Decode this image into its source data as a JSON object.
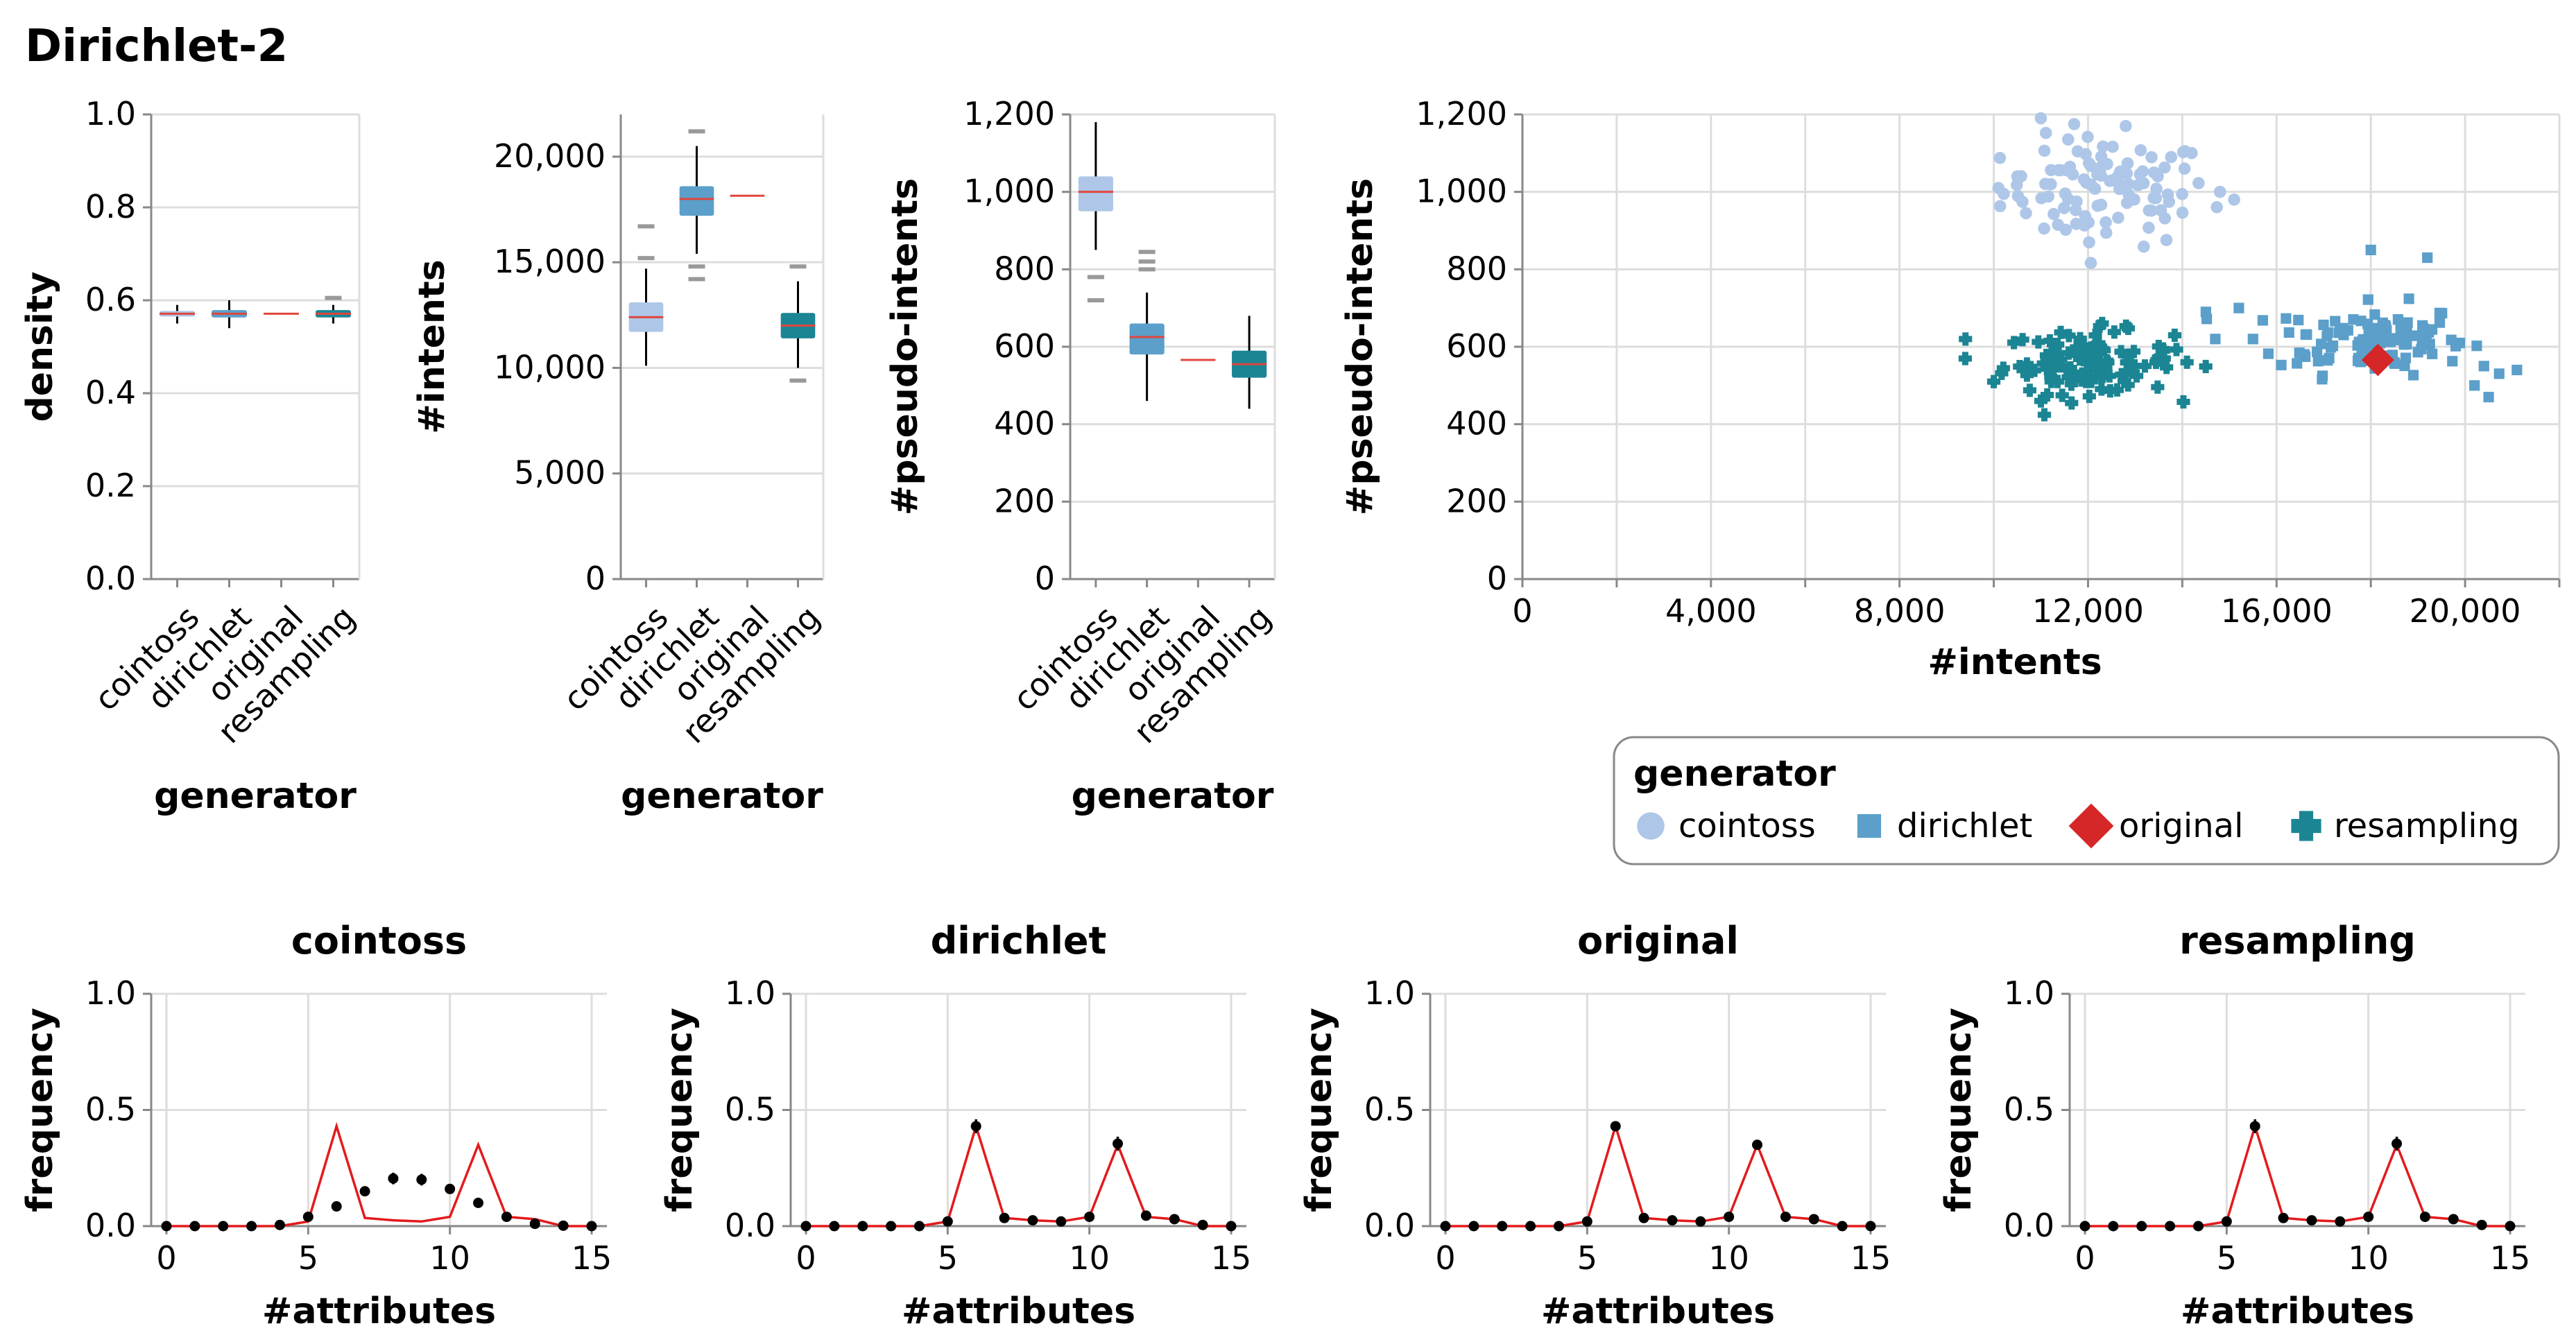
{
  "title": "Dirichlet-2",
  "colors": {
    "cointoss": "#aec7e8",
    "dirichlet": "#5b9fca",
    "original": "#d62728",
    "resampling": "#1b8594",
    "median": "#e0463c",
    "grid": "#dddddd",
    "axis": "#888888",
    "outlier": "#999999",
    "obs": "#000000",
    "orig_line": "#e31a1c"
  },
  "chart_data": [
    {
      "id": "density_box",
      "type": "boxplot",
      "xlabel": "generator",
      "ylabel": "density",
      "categories": [
        "cointoss",
        "dirichlet",
        "original",
        "resampling"
      ],
      "ylim": [
        0,
        1
      ],
      "yticks": [
        0,
        0.2,
        0.4,
        0.6,
        0.8,
        1
      ],
      "ytick_labels": [
        "0.0",
        "0.2",
        "0.4",
        "0.6",
        "0.8",
        "1.0"
      ],
      "boxes": [
        {
          "q1": 0.565,
          "median": 0.571,
          "q3": 0.577,
          "whisker_low": 0.55,
          "whisker_high": 0.59,
          "outliers": []
        },
        {
          "q1": 0.563,
          "median": 0.571,
          "q3": 0.579,
          "whisker_low": 0.54,
          "whisker_high": 0.6,
          "outliers": []
        },
        {
          "q1": 0.571,
          "median": 0.571,
          "q3": 0.571,
          "whisker_low": 0.571,
          "whisker_high": 0.571,
          "outliers": []
        },
        {
          "q1": 0.563,
          "median": 0.571,
          "q3": 0.579,
          "whisker_low": 0.55,
          "whisker_high": 0.59,
          "outliers": [
            0.605
          ]
        }
      ]
    },
    {
      "id": "intents_box",
      "type": "boxplot",
      "xlabel": "generator",
      "ylabel": "#intents",
      "categories": [
        "cointoss",
        "dirichlet",
        "original",
        "resampling"
      ],
      "ylim": [
        0,
        22000
      ],
      "yticks": [
        0,
        5000,
        10000,
        15000,
        20000
      ],
      "ytick_labels": [
        "0",
        "5,000",
        "10,000",
        "15,000",
        "20,000"
      ],
      "boxes": [
        {
          "q1": 11700,
          "median": 12400,
          "q3": 13100,
          "whisker_low": 10100,
          "whisker_high": 14700,
          "outliers": [
            15200,
            16700
          ]
        },
        {
          "q1": 17200,
          "median": 18000,
          "q3": 18600,
          "whisker_low": 15400,
          "whisker_high": 20500,
          "outliers": [
            14200,
            14800,
            21200
          ]
        },
        {
          "q1": 18150,
          "median": 18150,
          "q3": 18150,
          "whisker_low": 18150,
          "whisker_high": 18150,
          "outliers": []
        },
        {
          "q1": 11400,
          "median": 12000,
          "q3": 12600,
          "whisker_low": 10000,
          "whisker_high": 14100,
          "outliers": [
            9400,
            14800
          ]
        }
      ]
    },
    {
      "id": "pseudo_box",
      "type": "boxplot",
      "xlabel": "generator",
      "ylabel": "#pseudo-intents",
      "categories": [
        "cointoss",
        "dirichlet",
        "original",
        "resampling"
      ],
      "ylim": [
        0,
        1200
      ],
      "yticks": [
        0,
        200,
        400,
        600,
        800,
        1000,
        1200
      ],
      "ytick_labels": [
        "0",
        "200",
        "400",
        "600",
        "800",
        "1,000",
        "1,200"
      ],
      "boxes": [
        {
          "q1": 950,
          "median": 1000,
          "q3": 1040,
          "whisker_low": 850,
          "whisker_high": 1180,
          "outliers": [
            780,
            720
          ]
        },
        {
          "q1": 580,
          "median": 625,
          "q3": 660,
          "whisker_low": 460,
          "whisker_high": 740,
          "outliers": [
            800,
            820,
            845
          ]
        },
        {
          "q1": 566,
          "median": 566,
          "q3": 566,
          "whisker_low": 566,
          "whisker_high": 566,
          "outliers": []
        },
        {
          "q1": 520,
          "median": 555,
          "q3": 590,
          "whisker_low": 440,
          "whisker_high": 680,
          "outliers": []
        }
      ]
    },
    {
      "id": "scatter",
      "type": "scatter",
      "xlabel": "#intents",
      "ylabel": "#pseudo-intents",
      "xlim": [
        0,
        22000
      ],
      "ylim": [
        0,
        1200
      ],
      "xticks": [
        0,
        4000,
        8000,
        12000,
        16000,
        20000
      ],
      "xtick_labels": [
        "0",
        "4,000",
        "8,000",
        "12,000",
        "16,000",
        "20,000"
      ],
      "yticks": [
        0,
        200,
        400,
        600,
        800,
        1000,
        1200
      ],
      "ytick_labels": [
        "0",
        "200",
        "400",
        "600",
        "800",
        "1,000",
        "1,200"
      ],
      "series": [
        {
          "name": "cointoss",
          "marker": "circle",
          "center": [
            12400,
            1000
          ],
          "spread": [
            1100,
            70
          ],
          "count": 100,
          "extras": [
            [
              10100,
              1010
            ],
            [
              10500,
              1040
            ],
            [
              11000,
              1190
            ],
            [
              14800,
              1000
            ],
            [
              15100,
              980
            ],
            [
              13400,
              1050
            ],
            [
              12800,
              1170
            ]
          ]
        },
        {
          "name": "dirichlet",
          "marker": "square",
          "center": [
            18000,
            620
          ],
          "spread": [
            1000,
            45
          ],
          "count": 110,
          "extras": [
            [
              14700,
              620
            ],
            [
              15200,
              700
            ],
            [
              20400,
              550
            ],
            [
              21100,
              540
            ],
            [
              20200,
              500
            ],
            [
              20500,
              470
            ],
            [
              19200,
              830
            ],
            [
              18000,
              850
            ],
            [
              14500,
              690
            ],
            [
              15500,
              620
            ]
          ]
        },
        {
          "name": "original",
          "marker": "diamond",
          "points": [
            [
              18150,
              566
            ]
          ]
        },
        {
          "name": "resampling",
          "marker": "cross",
          "center": [
            12000,
            560
          ],
          "spread": [
            900,
            40
          ],
          "count": 110,
          "extras": [
            [
              9400,
              620
            ],
            [
              10000,
              510
            ],
            [
              14100,
              560
            ],
            [
              13600,
              590
            ],
            [
              12300,
              660
            ],
            [
              11000,
              460
            ]
          ]
        }
      ]
    },
    {
      "id": "freq_cointoss",
      "type": "line",
      "title": "cointoss",
      "xlabel": "#attributes",
      "ylabel": "frequency",
      "xlim": [
        0,
        15
      ],
      "ylim": [
        0,
        1
      ],
      "xticks": [
        0,
        5,
        10,
        15
      ],
      "xtick_labels": [
        "0",
        "5",
        "10",
        "15"
      ],
      "yticks": [
        0,
        0.5,
        1
      ],
      "ytick_labels": [
        "0.0",
        "0.5",
        "1.0"
      ],
      "x": [
        0,
        1,
        2,
        3,
        4,
        5,
        6,
        7,
        8,
        9,
        10,
        11,
        12,
        13,
        14,
        15
      ],
      "original": [
        0,
        0,
        0,
        0,
        0,
        0.02,
        0.43,
        0.035,
        0.025,
        0.02,
        0.04,
        0.35,
        0.04,
        0.03,
        0,
        0
      ],
      "observed": [
        0,
        0,
        0,
        0,
        0.005,
        0.04,
        0.085,
        0.15,
        0.205,
        0.2,
        0.16,
        0.1,
        0.04,
        0.01,
        0.002,
        0
      ],
      "errors": [
        0,
        0,
        0,
        0,
        0,
        0.01,
        0.02,
        0.02,
        0.025,
        0.025,
        0.02,
        0.02,
        0.01,
        0,
        0,
        0
      ]
    },
    {
      "id": "freq_dirichlet",
      "type": "line",
      "title": "dirichlet",
      "xlabel": "#attributes",
      "ylabel": "frequency",
      "xlim": [
        0,
        15
      ],
      "ylim": [
        0,
        1
      ],
      "xticks": [
        0,
        5,
        10,
        15
      ],
      "xtick_labels": [
        "0",
        "5",
        "10",
        "15"
      ],
      "yticks": [
        0,
        0.5,
        1
      ],
      "ytick_labels": [
        "0.0",
        "0.5",
        "1.0"
      ],
      "x": [
        0,
        1,
        2,
        3,
        4,
        5,
        6,
        7,
        8,
        9,
        10,
        11,
        12,
        13,
        14,
        15
      ],
      "original": [
        0,
        0,
        0,
        0,
        0,
        0.02,
        0.43,
        0.035,
        0.025,
        0.02,
        0.04,
        0.35,
        0.04,
        0.03,
        0,
        0
      ],
      "observed": [
        0,
        0,
        0,
        0,
        0,
        0.02,
        0.43,
        0.035,
        0.025,
        0.02,
        0.04,
        0.355,
        0.045,
        0.03,
        0.005,
        0
      ],
      "errors": [
        0,
        0,
        0,
        0,
        0,
        0.005,
        0.03,
        0.008,
        0.005,
        0.005,
        0.008,
        0.03,
        0.008,
        0.005,
        0,
        0
      ]
    },
    {
      "id": "freq_original",
      "type": "line",
      "title": "original",
      "xlabel": "#attributes",
      "ylabel": "frequency",
      "xlim": [
        0,
        15
      ],
      "ylim": [
        0,
        1
      ],
      "xticks": [
        0,
        5,
        10,
        15
      ],
      "xtick_labels": [
        "0",
        "5",
        "10",
        "15"
      ],
      "yticks": [
        0,
        0.5,
        1
      ],
      "ytick_labels": [
        "0.0",
        "0.5",
        "1.0"
      ],
      "x": [
        0,
        1,
        2,
        3,
        4,
        5,
        6,
        7,
        8,
        9,
        10,
        11,
        12,
        13,
        14,
        15
      ],
      "original": [
        0,
        0,
        0,
        0,
        0,
        0.02,
        0.43,
        0.035,
        0.025,
        0.02,
        0.04,
        0.35,
        0.04,
        0.03,
        0,
        0
      ],
      "observed": [
        0,
        0,
        0,
        0,
        0,
        0.02,
        0.43,
        0.035,
        0.025,
        0.02,
        0.04,
        0.35,
        0.04,
        0.03,
        0,
        0
      ],
      "errors": [
        0,
        0,
        0,
        0,
        0,
        0,
        0,
        0,
        0,
        0,
        0,
        0,
        0,
        0,
        0,
        0
      ]
    },
    {
      "id": "freq_resampling",
      "type": "line",
      "title": "resampling",
      "xlabel": "#attributes",
      "ylabel": "frequency",
      "xlim": [
        0,
        15
      ],
      "ylim": [
        0,
        1
      ],
      "xticks": [
        0,
        5,
        10,
        15
      ],
      "xtick_labels": [
        "0",
        "5",
        "10",
        "15"
      ],
      "yticks": [
        0,
        0.5,
        1
      ],
      "ytick_labels": [
        "0.0",
        "0.5",
        "1.0"
      ],
      "x": [
        0,
        1,
        2,
        3,
        4,
        5,
        6,
        7,
        8,
        9,
        10,
        11,
        12,
        13,
        14,
        15
      ],
      "original": [
        0,
        0,
        0,
        0,
        0,
        0.02,
        0.43,
        0.035,
        0.025,
        0.02,
        0.04,
        0.35,
        0.04,
        0.03,
        0,
        0
      ],
      "observed": [
        0,
        0,
        0,
        0,
        0,
        0.02,
        0.43,
        0.035,
        0.025,
        0.02,
        0.04,
        0.355,
        0.04,
        0.03,
        0.005,
        0
      ],
      "errors": [
        0,
        0,
        0,
        0,
        0,
        0.005,
        0.03,
        0.008,
        0.005,
        0.005,
        0.008,
        0.03,
        0.008,
        0.005,
        0,
        0
      ]
    }
  ],
  "legend": {
    "title": "generator",
    "items": [
      {
        "label": "cointoss",
        "marker": "circle"
      },
      {
        "label": "dirichlet",
        "marker": "square"
      },
      {
        "label": "original",
        "marker": "diamond"
      },
      {
        "label": "resampling",
        "marker": "cross"
      }
    ]
  }
}
